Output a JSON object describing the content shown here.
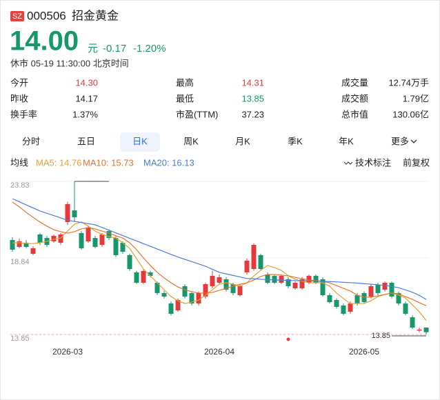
{
  "header": {
    "badge": "SZ",
    "code": "000506",
    "name": "招金黄金",
    "price": "14.00",
    "unit": "元",
    "change": "-0.17",
    "change_pct": "-1.20%",
    "price_color": "#17976b",
    "status": "休市 05-19 11:30:00 北京时间"
  },
  "stats": [
    {
      "label": "今开",
      "value": "14.30",
      "color": "#e5393b"
    },
    {
      "label": "最高",
      "value": "14.31",
      "color": "#e5393b"
    },
    {
      "label": "成交量",
      "value": "12.74万手",
      "color": "#222"
    },
    {
      "label": "昨收",
      "value": "14.17",
      "color": "#222"
    },
    {
      "label": "最低",
      "value": "13.85",
      "color": "#17976b"
    },
    {
      "label": "成交额",
      "value": "1.79亿",
      "color": "#222"
    },
    {
      "label": "换手率",
      "value": "1.37%",
      "color": "#222"
    },
    {
      "label": "市盈(TTM)",
      "value": "37.23",
      "color": "#222"
    },
    {
      "label": "总市值",
      "value": "130.06亿",
      "color": "#222"
    }
  ],
  "tabs": {
    "items": [
      "分时",
      "五日",
      "日K",
      "周K",
      "月K",
      "季K",
      "年K",
      "更多"
    ],
    "selected": 2
  },
  "indicators": {
    "title": "均线",
    "items": [
      {
        "text": "MA5: 14.76",
        "color": "#e9a030"
      },
      {
        "text": "MA10: 15.73",
        "color": "#e8732a"
      },
      {
        "text": "MA20: 16.13",
        "color": "#4a7ed8"
      }
    ],
    "right": [
      "技术标注",
      "前复权"
    ]
  },
  "chart_data": {
    "type": "candlestick",
    "up_color": "#e5393b",
    "down_color": "#17976b",
    "ylim": [
      13.85,
      23.83
    ],
    "yticks": [
      23.83,
      18.84,
      13.85
    ],
    "low_annotation": 13.85,
    "high_index": 9,
    "categories": [
      null,
      null,
      null,
      null,
      null,
      null,
      null,
      null,
      "2026-03",
      null,
      null,
      null,
      null,
      null,
      null,
      null,
      null,
      null,
      null,
      null,
      null,
      null,
      null,
      null,
      null,
      null,
      null,
      null,
      null,
      null,
      "2026-04",
      null,
      null,
      null,
      null,
      null,
      null,
      null,
      null,
      null,
      null,
      null,
      null,
      null,
      null,
      null,
      null,
      null,
      null,
      null,
      null,
      "2026-05",
      null,
      null,
      null,
      null,
      null,
      null,
      null,
      null,
      null
    ],
    "candles": [
      {
        "open": 20.01,
        "high": 20.2,
        "low": 19.24,
        "close": 19.38
      },
      {
        "open": 19.56,
        "high": 20.1,
        "low": 19.47,
        "close": 19.92
      },
      {
        "open": 19.83,
        "high": 20.0,
        "low": 19.47,
        "close": 19.56
      },
      {
        "open": 19.11,
        "high": 19.6,
        "low": 19.02,
        "close": 19.47
      },
      {
        "open": 20.37,
        "high": 20.46,
        "low": 19.69,
        "close": 19.83
      },
      {
        "open": 20.14,
        "high": 20.28,
        "low": 19.56,
        "close": 19.69
      },
      {
        "open": 19.92,
        "high": 20.37,
        "low": 19.83,
        "close": 20.28
      },
      {
        "open": 19.83,
        "high": 20.46,
        "low": 19.69,
        "close": 20.37
      },
      {
        "open": 21.18,
        "high": 22.5,
        "low": 21.0,
        "close": 22.35
      },
      {
        "open": 21.94,
        "high": 23.83,
        "low": 21.18,
        "close": 21.49
      },
      {
        "open": 20.46,
        "high": 20.59,
        "low": 19.38,
        "close": 19.47
      },
      {
        "open": 19.92,
        "high": 20.95,
        "low": 19.83,
        "close": 20.82
      },
      {
        "open": 20.14,
        "high": 20.28,
        "low": 19.47,
        "close": 19.56
      },
      {
        "open": 19.69,
        "high": 20.46,
        "low": 19.56,
        "close": 20.37
      },
      {
        "open": 20.59,
        "high": 20.7,
        "low": 20.01,
        "close": 20.14
      },
      {
        "open": 20.14,
        "high": 20.28,
        "low": 18.9,
        "close": 19.02
      },
      {
        "open": 19.83,
        "high": 19.92,
        "low": 19.11,
        "close": 19.24
      },
      {
        "open": 19.02,
        "high": 19.11,
        "low": 18.0,
        "close": 18.12
      },
      {
        "open": 17.9,
        "high": 18.0,
        "low": 17.13,
        "close": 17.22
      },
      {
        "open": 17.22,
        "high": 18.12,
        "low": 17.13,
        "close": 17.99
      },
      {
        "open": 17.9,
        "high": 18.0,
        "low": 17.58,
        "close": 17.67
      },
      {
        "open": 17.22,
        "high": 17.3,
        "low": 16.41,
        "close": 16.55
      },
      {
        "open": 16.55,
        "high": 16.7,
        "low": 16.2,
        "close": 16.32
      },
      {
        "open": 15.87,
        "high": 16.0,
        "low": 15.1,
        "close": 15.2
      },
      {
        "open": 15.42,
        "high": 16.2,
        "low": 15.33,
        "close": 16.1
      },
      {
        "open": 17.0,
        "high": 17.13,
        "low": 16.2,
        "close": 16.32
      },
      {
        "open": 16.55,
        "high": 16.65,
        "low": 15.74,
        "close": 15.87
      },
      {
        "open": 15.87,
        "high": 16.65,
        "low": 15.74,
        "close": 16.55
      },
      {
        "open": 16.32,
        "high": 17.22,
        "low": 16.2,
        "close": 17.13
      },
      {
        "open": 17.0,
        "high": 18.0,
        "low": 16.86,
        "close": 17.67
      },
      {
        "open": 17.22,
        "high": 17.76,
        "low": 17.13,
        "close": 17.58
      },
      {
        "open": 17.45,
        "high": 17.58,
        "low": 16.65,
        "close": 16.77
      },
      {
        "open": 17.13,
        "high": 17.22,
        "low": 16.41,
        "close": 16.55
      },
      {
        "open": 16.41,
        "high": 17.13,
        "low": 16.32,
        "close": 17.0
      },
      {
        "open": 17.9,
        "high": 18.8,
        "low": 17.76,
        "close": 18.66
      },
      {
        "open": 18.12,
        "high": 19.8,
        "low": 18.0,
        "close": 19.69
      },
      {
        "open": 19.02,
        "high": 19.11,
        "low": 18.0,
        "close": 18.12
      },
      {
        "open": 17.76,
        "high": 17.9,
        "low": 17.13,
        "close": 17.22
      },
      {
        "open": 17.67,
        "high": 17.76,
        "low": 17.13,
        "close": 17.22
      },
      {
        "open": 17.22,
        "high": 17.76,
        "low": 17.13,
        "close": 17.67
      },
      {
        "open": 17.45,
        "high": 17.58,
        "low": 16.86,
        "close": 17.0
      },
      {
        "open": 16.86,
        "high": 17.3,
        "low": 16.77,
        "close": 17.22
      },
      {
        "open": 16.86,
        "high": 17.58,
        "low": 16.77,
        "close": 17.45
      },
      {
        "open": 17.22,
        "high": 17.76,
        "low": 17.13,
        "close": 17.67
      },
      {
        "open": 17.67,
        "high": 17.76,
        "low": 17.13,
        "close": 17.22
      },
      {
        "open": 17.45,
        "high": 17.58,
        "low": 16.32,
        "close": 16.41
      },
      {
        "open": 16.41,
        "high": 16.55,
        "low": 15.87,
        "close": 15.96
      },
      {
        "open": 16.1,
        "high": 16.2,
        "low": 15.54,
        "close": 15.65
      },
      {
        "open": 15.74,
        "high": 15.87,
        "low": 15.1,
        "close": 15.2
      },
      {
        "open": 15.33,
        "high": 16.0,
        "low": 15.2,
        "close": 15.87
      },
      {
        "open": 16.41,
        "high": 16.55,
        "low": 15.74,
        "close": 15.87
      },
      {
        "open": 16.55,
        "high": 16.65,
        "low": 15.87,
        "close": 15.96
      },
      {
        "open": 16.32,
        "high": 17.13,
        "low": 16.2,
        "close": 17.0
      },
      {
        "open": 17.09,
        "high": 17.22,
        "low": 16.41,
        "close": 16.55
      },
      {
        "open": 16.77,
        "high": 17.3,
        "low": 16.65,
        "close": 17.22
      },
      {
        "open": 17.22,
        "high": 17.3,
        "low": 16.2,
        "close": 16.32
      },
      {
        "open": 16.55,
        "high": 16.65,
        "low": 15.74,
        "close": 15.87
      },
      {
        "open": 15.87,
        "high": 16.0,
        "low": 15.1,
        "close": 15.2
      },
      {
        "open": 14.97,
        "high": 15.1,
        "low": 14.2,
        "close": 14.3
      },
      {
        "open": 14.1,
        "high": 14.3,
        "low": 14.0,
        "close": 14.17
      },
      {
        "open": 14.3,
        "high": 14.31,
        "low": 13.85,
        "close": 14.0
      }
    ],
    "series": [
      {
        "name": "MA5",
        "color": "#e9a030",
        "values": [
          19.83,
          19.83,
          19.78,
          19.78,
          19.83,
          19.92,
          20.05,
          20.14,
          20.59,
          21.04,
          21.18,
          20.91,
          20.59,
          20.37,
          20.23,
          20.14,
          19.83,
          19.47,
          18.79,
          18.12,
          17.67,
          17.22,
          16.77,
          16.32,
          16.05,
          15.87,
          15.96,
          16.1,
          16.41,
          16.77,
          17.13,
          17.22,
          17.13,
          17.0,
          17.22,
          17.67,
          18.03,
          18.35,
          18.21,
          18.03,
          17.67,
          17.45,
          17.31,
          17.22,
          17.22,
          17.22,
          17.0,
          16.55,
          16.19,
          15.87,
          15.87,
          15.87,
          16.05,
          16.32,
          16.46,
          16.55,
          16.41,
          16.23,
          15.78,
          15.33,
          14.76
        ]
      },
      {
        "name": "MA10",
        "color": "#e8732a",
        "values": [
          22.48,
          22.17,
          21.81,
          21.49,
          21.18,
          20.91,
          20.68,
          20.55,
          20.46,
          20.55,
          20.73,
          20.82,
          20.73,
          20.59,
          20.46,
          20.28,
          20.14,
          19.83,
          19.38,
          18.84,
          18.35,
          17.9,
          17.54,
          17.22,
          16.95,
          16.77,
          16.64,
          16.55,
          16.55,
          16.59,
          16.73,
          16.86,
          17.0,
          17.13,
          17.22,
          17.4,
          17.63,
          17.76,
          17.76,
          17.72,
          17.67,
          17.58,
          17.49,
          17.4,
          17.36,
          17.31,
          17.22,
          17.04,
          16.86,
          16.68,
          16.41,
          16.28,
          16.28,
          16.37,
          16.46,
          16.55,
          16.5,
          16.32,
          16.14,
          15.92,
          15.73
        ]
      },
      {
        "name": "MA20",
        "color": "#4a7ed8",
        "values": [
          22.7,
          22.5,
          22.3,
          22.1,
          21.9,
          21.75,
          21.6,
          21.45,
          21.3,
          21.22,
          21.15,
          21.07,
          21.0,
          20.82,
          20.65,
          20.47,
          20.3,
          20.12,
          19.95,
          19.77,
          19.6,
          19.42,
          19.25,
          19.07,
          18.9,
          18.75,
          18.6,
          18.45,
          18.3,
          18.1,
          17.9,
          17.8,
          17.7,
          17.6,
          17.5,
          17.48,
          17.45,
          17.43,
          17.4,
          17.39,
          17.38,
          17.36,
          17.35,
          17.34,
          17.33,
          17.31,
          17.3,
          17.28,
          17.25,
          17.23,
          17.2,
          17.16,
          17.13,
          17.09,
          17.05,
          16.98,
          16.9,
          16.75,
          16.6,
          16.4,
          16.13
        ]
      }
    ]
  }
}
